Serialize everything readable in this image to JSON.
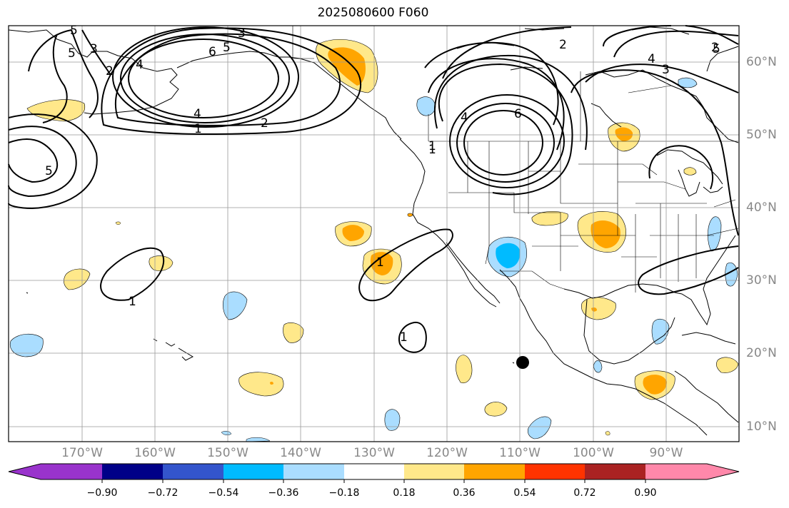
{
  "title": "2025080600 F060",
  "longitude_labels": [
    "170°W",
    "160°W",
    "150°W",
    "140°W",
    "130°W",
    "120°W",
    "110°W",
    "100°W",
    "90°W"
  ],
  "latitude_labels": [
    "60°N",
    "50°N",
    "40°N",
    "30°N",
    "20°N",
    "10°N"
  ],
  "colorbar": {
    "tick_labels": [
      "−0.90",
      "−0.72",
      "−0.54",
      "−0.36",
      "−0.18",
      "0.18",
      "0.36",
      "0.54",
      "0.72",
      "0.90"
    ],
    "colors": [
      "#9933cc",
      "#000088",
      "#3355cc",
      "#00bbff",
      "#aaddff",
      "#ffffff",
      "#ffe88a",
      "#ffa500",
      "#ff3300",
      "#aa2222",
      "#ff88aa"
    ]
  },
  "contour_labels": [
    "3",
    "5",
    "5",
    "3",
    "2",
    "4",
    "6",
    "5",
    "4",
    "2",
    "1",
    "5",
    "2",
    "1",
    "6",
    "4",
    "2",
    "4",
    "3",
    "5",
    "1",
    "1",
    "1",
    "1"
  ],
  "map_extent": {
    "lon_min": -179,
    "lon_max": -79,
    "lat_min": 8,
    "lat_max": 65
  }
}
